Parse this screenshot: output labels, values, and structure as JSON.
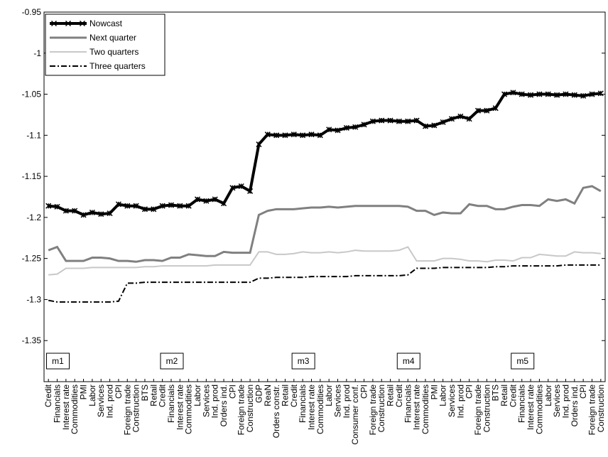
{
  "chart_data": {
    "type": "line",
    "categories": [
      "Credit",
      "Financials",
      "Interest rate",
      "Commodities",
      "PMI",
      "Labor",
      "Services",
      "Ind. prod",
      "CPI",
      "Foreign trade",
      "Construction",
      "BTS",
      "Retail",
      "Credit",
      "Financials",
      "Interest rate",
      "Commodities",
      "Labor",
      "Services",
      "Ind. prod",
      "Orders ind.",
      "CPI",
      "Foreign trade",
      "Construction",
      "GDP",
      "ReaN",
      "Orders constr.",
      "Retail",
      "Credit",
      "Financials",
      "Interest rate",
      "Commodities",
      "Labor",
      "Services",
      "Ind. prod",
      "Consumer conf.",
      "CPI",
      "Foreign trade",
      "Construction",
      "Retail",
      "Credit",
      "Financials",
      "Interest rate",
      "Commodities",
      "PMI",
      "Labor",
      "Services",
      "Ind. prod",
      "CPI",
      "Foreign trade",
      "Construction",
      "BTS",
      "Retail",
      "Credit",
      "Financials",
      "Interest rate",
      "Commodities",
      "Labor",
      "Services",
      "Ind. prod",
      "Orders ind.",
      "CPI",
      "Foreign trade",
      "Construction"
    ],
    "series": [
      {
        "name": "Nowcast",
        "color": "#000000",
        "values": [
          -1.186,
          -1.187,
          -1.192,
          -1.192,
          -1.197,
          -1.194,
          -1.196,
          -1.195,
          -1.184,
          -1.186,
          -1.186,
          -1.19,
          -1.19,
          -1.186,
          -1.185,
          -1.186,
          -1.186,
          -1.178,
          -1.18,
          -1.178,
          -1.183,
          -1.164,
          -1.162,
          -1.168,
          -1.111,
          -1.099,
          -1.1,
          -1.1,
          -1.099,
          -1.1,
          -1.099,
          -1.1,
          -1.093,
          -1.094,
          -1.091,
          -1.09,
          -1.087,
          -1.083,
          -1.082,
          -1.082,
          -1.083,
          -1.083,
          -1.082,
          -1.089,
          -1.088,
          -1.084,
          -1.08,
          -1.077,
          -1.08,
          -1.07,
          -1.07,
          -1.067,
          -1.05,
          -1.048,
          -1.05,
          -1.051,
          -1.05,
          -1.05,
          -1.051,
          -1.05,
          -1.051,
          -1.052,
          -1.05,
          -1.049
        ]
      },
      {
        "name": "Next quarter",
        "color": "#808080",
        "values": [
          -1.24,
          -1.236,
          -1.253,
          -1.253,
          -1.253,
          -1.249,
          -1.249,
          -1.25,
          -1.253,
          -1.253,
          -1.254,
          -1.252,
          -1.252,
          -1.253,
          -1.249,
          -1.249,
          -1.245,
          -1.246,
          -1.247,
          -1.247,
          -1.242,
          -1.243,
          -1.243,
          -1.243,
          -1.197,
          -1.192,
          -1.19,
          -1.19,
          -1.19,
          -1.189,
          -1.188,
          -1.188,
          -1.187,
          -1.188,
          -1.187,
          -1.186,
          -1.186,
          -1.186,
          -1.186,
          -1.186,
          -1.186,
          -1.187,
          -1.192,
          -1.192,
          -1.197,
          -1.194,
          -1.195,
          -1.195,
          -1.184,
          -1.186,
          -1.186,
          -1.19,
          -1.19,
          -1.187,
          -1.185,
          -1.185,
          -1.186,
          -1.178,
          -1.18,
          -1.178,
          -1.183,
          -1.164,
          -1.162,
          -1.168
        ]
      },
      {
        "name": "Two quarters",
        "color": "#c8c8c8",
        "values": [
          -1.27,
          -1.269,
          -1.262,
          -1.262,
          -1.262,
          -1.261,
          -1.261,
          -1.261,
          -1.261,
          -1.261,
          -1.261,
          -1.26,
          -1.26,
          -1.259,
          -1.259,
          -1.259,
          -1.259,
          -1.259,
          -1.259,
          -1.258,
          -1.258,
          -1.258,
          -1.258,
          -1.258,
          -1.242,
          -1.242,
          -1.245,
          -1.245,
          -1.244,
          -1.242,
          -1.243,
          -1.243,
          -1.242,
          -1.243,
          -1.242,
          -1.24,
          -1.241,
          -1.241,
          -1.241,
          -1.241,
          -1.24,
          -1.236,
          -1.253,
          -1.253,
          -1.253,
          -1.25,
          -1.25,
          -1.251,
          -1.253,
          -1.253,
          -1.254,
          -1.252,
          -1.252,
          -1.253,
          -1.249,
          -1.249,
          -1.245,
          -1.246,
          -1.247,
          -1.247,
          -1.242,
          -1.243,
          -1.243,
          -1.244
        ]
      },
      {
        "name": "Three quarters",
        "color": "#000000",
        "values": [
          -1.301,
          -1.303,
          -1.303,
          -1.303,
          -1.303,
          -1.303,
          -1.303,
          -1.303,
          -1.302,
          -1.28,
          -1.28,
          -1.279,
          -1.279,
          -1.279,
          -1.279,
          -1.279,
          -1.279,
          -1.279,
          -1.279,
          -1.279,
          -1.279,
          -1.279,
          -1.279,
          -1.279,
          -1.274,
          -1.274,
          -1.273,
          -1.273,
          -1.273,
          -1.273,
          -1.272,
          -1.272,
          -1.272,
          -1.272,
          -1.272,
          -1.271,
          -1.271,
          -1.271,
          -1.271,
          -1.271,
          -1.271,
          -1.27,
          -1.262,
          -1.262,
          -1.262,
          -1.261,
          -1.261,
          -1.261,
          -1.261,
          -1.261,
          -1.261,
          -1.26,
          -1.26,
          -1.259,
          -1.259,
          -1.259,
          -1.259,
          -1.259,
          -1.259,
          -1.258,
          -1.258,
          -1.258,
          -1.258,
          -1.258
        ]
      }
    ],
    "ylim": [
      -1.4,
      -0.95
    ],
    "yticks": [
      -1.35,
      -1.3,
      -1.25,
      -1.2,
      -1.15,
      -1.1,
      -1.05,
      -1,
      -0.95
    ],
    "legend": "upper left",
    "annotations": [
      "m1",
      "m2",
      "m3",
      "m4",
      "m5"
    ]
  }
}
